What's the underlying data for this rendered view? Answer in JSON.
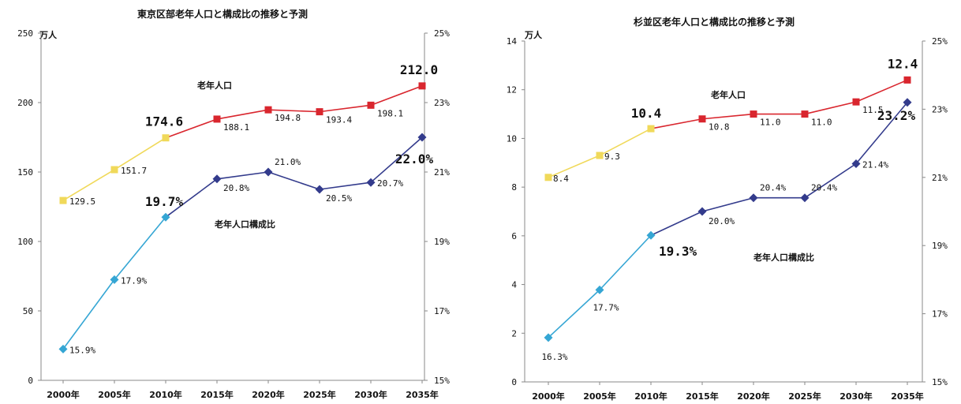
{
  "chart_data": [
    {
      "type": "line",
      "title": "東京区部老年人口と構成比の推移と予測",
      "ylabel": "万人",
      "y_ticks": [
        "0",
        "50",
        "100",
        "150",
        "200",
        "250"
      ],
      "ylim": [
        0,
        250
      ],
      "y2_ticks": [
        "15%",
        "17%",
        "19%",
        "21%",
        "23%",
        "25%"
      ],
      "y2lim": [
        15,
        25
      ],
      "categories": [
        "2000年",
        "2005年",
        "2010年",
        "2015年",
        "2020年",
        "2025年",
        "2030年",
        "2035年"
      ],
      "series": [
        {
          "name": "老年人口",
          "axis": "left",
          "values": [
            129.5,
            151.7,
            174.6,
            188.1,
            194.8,
            193.4,
            198.1,
            212.0
          ],
          "labels": [
            "129.5",
            "151.7",
            "174.6",
            "188.1",
            "194.8",
            "193.4",
            "198.1",
            "212.0"
          ],
          "colors": [
            "#f0d95a",
            "#f0d95a",
            "#f0d95a",
            "#d9262e",
            "#d9262e",
            "#d9262e",
            "#d9262e",
            "#d9262e"
          ],
          "line_colors": [
            "#f0d95a",
            "#f0d95a",
            "#d9262e",
            "#d9262e",
            "#d9262e",
            "#d9262e",
            "#d9262e"
          ]
        },
        {
          "name": "老年人口構成比",
          "axis": "right",
          "values": [
            15.9,
            17.9,
            19.7,
            20.8,
            21.0,
            20.5,
            20.7,
            22.0
          ],
          "labels": [
            "15.9%",
            "17.9%",
            "19.7%",
            "20.8%",
            "21.0%",
            "20.5%",
            "20.7%",
            "22.0%"
          ],
          "colors": [
            "#35a6d4",
            "#35a6d4",
            "#35a6d4",
            "#333b8c",
            "#333b8c",
            "#333b8c",
            "#333b8c",
            "#333b8c"
          ],
          "line_colors": [
            "#35a6d4",
            "#35a6d4",
            "#333b8c",
            "#333b8c",
            "#333b8c",
            "#333b8c",
            "#333b8c"
          ]
        }
      ]
    },
    {
      "type": "line",
      "title": "杉並区老年人口と構成比の推移と予測",
      "ylabel": "万人",
      "y_ticks": [
        "0",
        "2",
        "4",
        "6",
        "8",
        "10",
        "12",
        "14"
      ],
      "ylim": [
        0,
        14
      ],
      "y2_ticks": [
        "15%",
        "17%",
        "19%",
        "21%",
        "23%",
        "25%"
      ],
      "y2lim": [
        15,
        25
      ],
      "categories": [
        "2000年",
        "2005年",
        "2010年",
        "2015年",
        "2020年",
        "2025年",
        "2030年",
        "2035年"
      ],
      "series": [
        {
          "name": "老年人口",
          "axis": "left",
          "values": [
            8.4,
            9.3,
            10.4,
            10.8,
            11.0,
            11.0,
            11.5,
            12.4
          ],
          "labels": [
            "8.4",
            "9.3",
            "10.4",
            "10.8",
            "11.0",
            "11.0",
            "11.5",
            "12.4"
          ],
          "colors": [
            "#f0d95a",
            "#f0d95a",
            "#f0d95a",
            "#d9262e",
            "#d9262e",
            "#d9262e",
            "#d9262e",
            "#d9262e"
          ],
          "line_colors": [
            "#f0d95a",
            "#f0d95a",
            "#d9262e",
            "#d9262e",
            "#d9262e",
            "#d9262e",
            "#d9262e"
          ]
        },
        {
          "name": "老年人口構成比",
          "axis": "right",
          "values": [
            16.3,
            17.7,
            19.3,
            20.0,
            20.4,
            20.4,
            21.4,
            23.2
          ],
          "labels": [
            "16.3%",
            "17.7%",
            "19.3%",
            "20.0%",
            "20.4%",
            "20.4%",
            "21.4%",
            "23.2%"
          ],
          "colors": [
            "#35a6d4",
            "#35a6d4",
            "#35a6d4",
            "#333b8c",
            "#333b8c",
            "#333b8c",
            "#333b8c",
            "#333b8c"
          ],
          "line_colors": [
            "#35a6d4",
            "#35a6d4",
            "#333b8c",
            "#333b8c",
            "#333b8c",
            "#333b8c",
            "#333b8c"
          ]
        }
      ]
    }
  ]
}
